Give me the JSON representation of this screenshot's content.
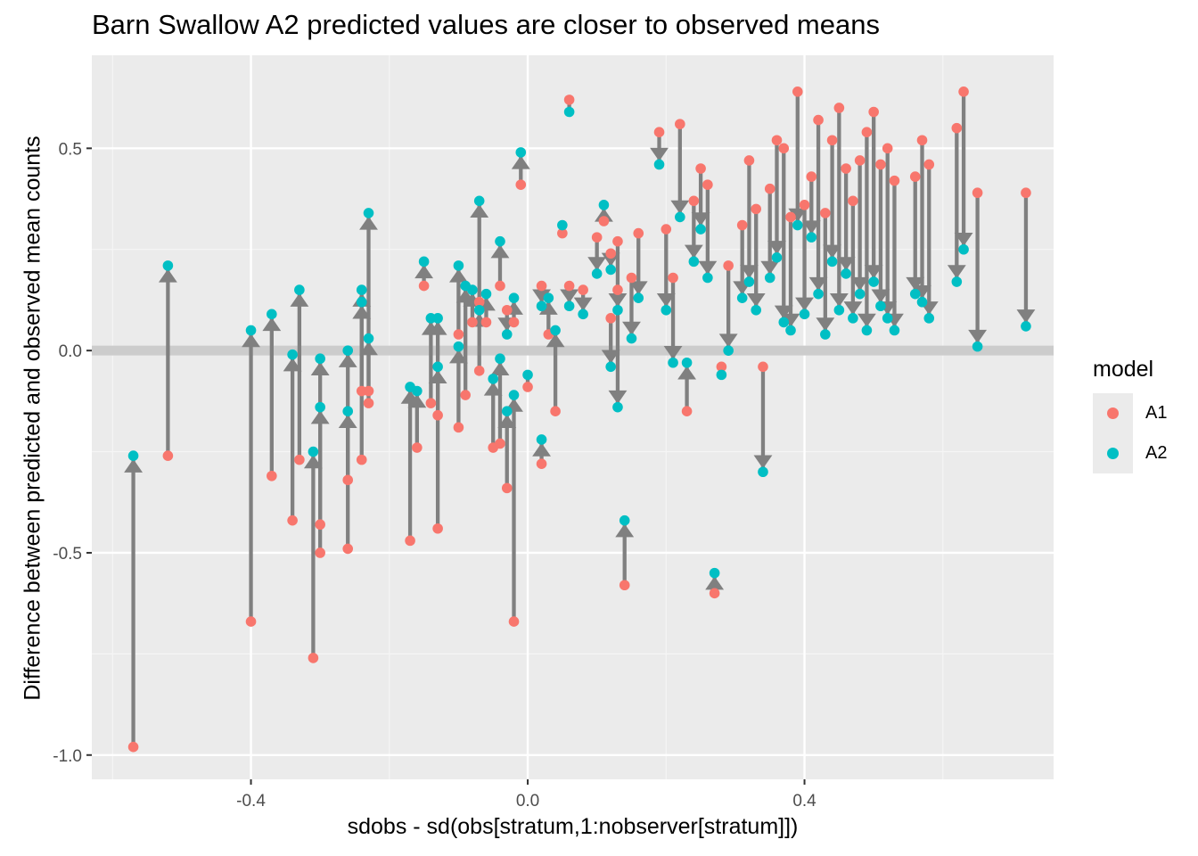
{
  "chart_data": {
    "type": "scatter",
    "title": "Barn Swallow A2 predicted values are closer to observed means",
    "xlabel": "sdobs - sd(obs[stratum,1:nobserver[stratum]])",
    "ylabel": "Difference between predicted and observed mean counts",
    "xlim": [
      -0.63,
      0.76
    ],
    "ylim": [
      -1.06,
      0.73
    ],
    "x_ticks": [
      -0.4,
      0.0,
      0.4
    ],
    "x_tick_labels": [
      "-0.4",
      "0.0",
      "0.4"
    ],
    "y_ticks": [
      -1.0,
      -0.5,
      0.0,
      0.5
    ],
    "y_tick_labels": [
      "-1.0",
      "-0.5",
      "0.0",
      "0.5"
    ],
    "grid": true,
    "hline": 0,
    "legend": {
      "title": "model",
      "position": "right"
    },
    "series": [
      {
        "name": "A1",
        "color": "#F8766D"
      },
      {
        "name": "A2",
        "color": "#00BFC4"
      }
    ],
    "segments": [
      {
        "x": -0.57,
        "a1": -0.98,
        "a2": -0.26
      },
      {
        "x": -0.52,
        "a1": -0.26,
        "a2": 0.21
      },
      {
        "x": -0.4,
        "a1": -0.67,
        "a2": 0.05
      },
      {
        "x": -0.37,
        "a1": -0.31,
        "a2": 0.09
      },
      {
        "x": -0.34,
        "a1": -0.42,
        "a2": -0.01
      },
      {
        "x": -0.33,
        "a1": -0.27,
        "a2": 0.15
      },
      {
        "x": -0.31,
        "a1": -0.76,
        "a2": -0.25
      },
      {
        "x": -0.3,
        "a1": -0.43,
        "a2": -0.02
      },
      {
        "x": -0.3,
        "a1": -0.5,
        "a2": -0.14
      },
      {
        "x": -0.26,
        "a1": -0.49,
        "a2": -0.15
      },
      {
        "x": -0.26,
        "a1": -0.32,
        "a2": 0.0
      },
      {
        "x": -0.24,
        "a1": -0.27,
        "a2": 0.15
      },
      {
        "x": -0.24,
        "a1": -0.1,
        "a2": 0.12
      },
      {
        "x": -0.23,
        "a1": -0.13,
        "a2": 0.03
      },
      {
        "x": -0.23,
        "a1": -0.1,
        "a2": 0.34
      },
      {
        "x": -0.17,
        "a1": -0.47,
        "a2": -0.09
      },
      {
        "x": -0.16,
        "a1": -0.24,
        "a2": -0.1
      },
      {
        "x": -0.15,
        "a1": 0.16,
        "a2": 0.22
      },
      {
        "x": -0.14,
        "a1": -0.13,
        "a2": 0.08
      },
      {
        "x": -0.13,
        "a1": -0.44,
        "a2": -0.04
      },
      {
        "x": -0.13,
        "a1": -0.16,
        "a2": 0.08
      },
      {
        "x": -0.1,
        "a1": -0.19,
        "a2": 0.01
      },
      {
        "x": -0.1,
        "a1": 0.04,
        "a2": 0.21
      },
      {
        "x": -0.09,
        "a1": -0.11,
        "a2": 0.16
      },
      {
        "x": -0.08,
        "a1": 0.07,
        "a2": 0.15
      },
      {
        "x": -0.07,
        "a1": -0.05,
        "a2": 0.1
      },
      {
        "x": -0.07,
        "a1": 0.12,
        "a2": 0.37
      },
      {
        "x": -0.06,
        "a1": 0.07,
        "a2": 0.14
      },
      {
        "x": -0.05,
        "a1": -0.24,
        "a2": -0.07
      },
      {
        "x": -0.04,
        "a1": -0.23,
        "a2": -0.02
      },
      {
        "x": -0.04,
        "a1": 0.16,
        "a2": 0.27
      },
      {
        "x": -0.03,
        "a1": -0.34,
        "a2": -0.15
      },
      {
        "x": -0.03,
        "a1": 0.1,
        "a2": 0.04
      },
      {
        "x": -0.02,
        "a1": -0.67,
        "a2": -0.11
      },
      {
        "x": -0.02,
        "a1": 0.07,
        "a2": 0.13
      },
      {
        "x": -0.01,
        "a1": 0.41,
        "a2": 0.49
      },
      {
        "x": 0.0,
        "a1": -0.09,
        "a2": -0.06
      },
      {
        "x": 0.02,
        "a1": 0.16,
        "a2": 0.11
      },
      {
        "x": 0.02,
        "a1": -0.28,
        "a2": -0.22
      },
      {
        "x": 0.03,
        "a1": 0.04,
        "a2": 0.13
      },
      {
        "x": 0.04,
        "a1": -0.15,
        "a2": 0.05
      },
      {
        "x": 0.05,
        "a1": 0.29,
        "a2": 0.31
      },
      {
        "x": 0.06,
        "a1": 0.16,
        "a2": 0.11
      },
      {
        "x": 0.06,
        "a1": 0.62,
        "a2": 0.59
      },
      {
        "x": 0.08,
        "a1": 0.15,
        "a2": 0.09
      },
      {
        "x": 0.1,
        "a1": 0.28,
        "a2": 0.19
      },
      {
        "x": 0.11,
        "a1": 0.32,
        "a2": 0.36
      },
      {
        "x": 0.12,
        "a1": 0.08,
        "a2": -0.04
      },
      {
        "x": 0.12,
        "a1": 0.24,
        "a2": 0.2
      },
      {
        "x": 0.13,
        "a1": 0.15,
        "a2": 0.1
      },
      {
        "x": 0.13,
        "a1": 0.27,
        "a2": -0.14
      },
      {
        "x": 0.14,
        "a1": -0.58,
        "a2": -0.42
      },
      {
        "x": 0.15,
        "a1": 0.18,
        "a2": 0.03
      },
      {
        "x": 0.16,
        "a1": 0.29,
        "a2": 0.13
      },
      {
        "x": 0.19,
        "a1": 0.54,
        "a2": 0.46
      },
      {
        "x": 0.2,
        "a1": 0.3,
        "a2": 0.1
      },
      {
        "x": 0.21,
        "a1": 0.18,
        "a2": -0.03
      },
      {
        "x": 0.22,
        "a1": 0.56,
        "a2": 0.33
      },
      {
        "x": 0.23,
        "a1": -0.15,
        "a2": -0.03
      },
      {
        "x": 0.24,
        "a1": 0.37,
        "a2": 0.22
      },
      {
        "x": 0.25,
        "a1": 0.45,
        "a2": 0.3
      },
      {
        "x": 0.26,
        "a1": 0.41,
        "a2": 0.18
      },
      {
        "x": 0.27,
        "a1": -0.6,
        "a2": -0.55
      },
      {
        "x": 0.28,
        "a1": -0.04,
        "a2": -0.06
      },
      {
        "x": 0.29,
        "a1": 0.21,
        "a2": 0.0
      },
      {
        "x": 0.31,
        "a1": 0.31,
        "a2": 0.13
      },
      {
        "x": 0.32,
        "a1": 0.47,
        "a2": 0.17
      },
      {
        "x": 0.33,
        "a1": 0.35,
        "a2": 0.1
      },
      {
        "x": 0.34,
        "a1": -0.04,
        "a2": -0.3
      },
      {
        "x": 0.35,
        "a1": 0.4,
        "a2": 0.18
      },
      {
        "x": 0.36,
        "a1": 0.52,
        "a2": 0.23
      },
      {
        "x": 0.37,
        "a1": 0.5,
        "a2": 0.07
      },
      {
        "x": 0.38,
        "a1": 0.33,
        "a2": 0.05
      },
      {
        "x": 0.39,
        "a1": 0.64,
        "a2": 0.31
      },
      {
        "x": 0.4,
        "a1": 0.36,
        "a2": 0.09
      },
      {
        "x": 0.41,
        "a1": 0.43,
        "a2": 0.28
      },
      {
        "x": 0.42,
        "a1": 0.57,
        "a2": 0.14
      },
      {
        "x": 0.43,
        "a1": 0.34,
        "a2": 0.04
      },
      {
        "x": 0.44,
        "a1": 0.52,
        "a2": 0.22
      },
      {
        "x": 0.45,
        "a1": 0.6,
        "a2": 0.1
      },
      {
        "x": 0.46,
        "a1": 0.45,
        "a2": 0.19
      },
      {
        "x": 0.47,
        "a1": 0.37,
        "a2": 0.08
      },
      {
        "x": 0.48,
        "a1": 0.47,
        "a2": 0.14
      },
      {
        "x": 0.49,
        "a1": 0.54,
        "a2": 0.05
      },
      {
        "x": 0.5,
        "a1": 0.59,
        "a2": 0.17
      },
      {
        "x": 0.51,
        "a1": 0.46,
        "a2": 0.11
      },
      {
        "x": 0.52,
        "a1": 0.5,
        "a2": 0.08
      },
      {
        "x": 0.53,
        "a1": 0.42,
        "a2": 0.05
      },
      {
        "x": 0.56,
        "a1": 0.43,
        "a2": 0.14
      },
      {
        "x": 0.57,
        "a1": 0.52,
        "a2": 0.12
      },
      {
        "x": 0.58,
        "a1": 0.46,
        "a2": 0.08
      },
      {
        "x": 0.62,
        "a1": 0.55,
        "a2": 0.17
      },
      {
        "x": 0.63,
        "a1": 0.64,
        "a2": 0.25
      },
      {
        "x": 0.65,
        "a1": 0.39,
        "a2": 0.01
      },
      {
        "x": 0.72,
        "a1": 0.39,
        "a2": 0.06
      }
    ]
  }
}
